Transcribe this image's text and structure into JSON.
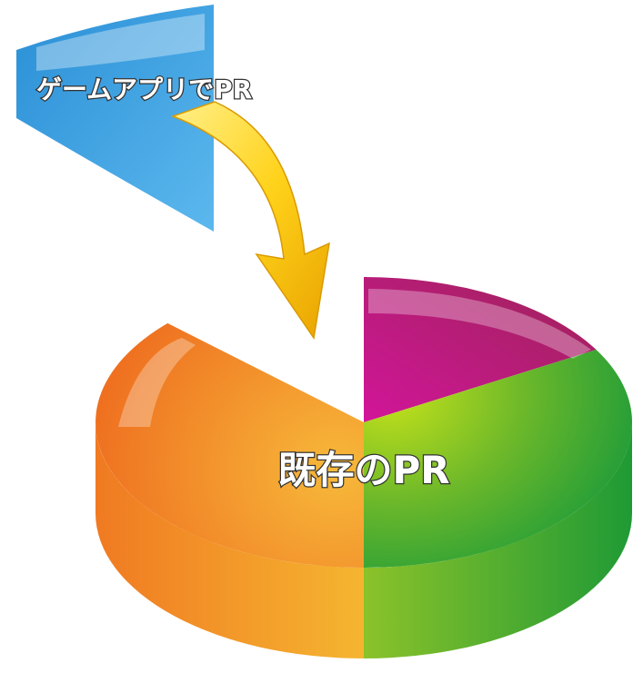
{
  "labels": {
    "top": "ゲームアプリでPR",
    "center": "既存のPR"
  }
}
